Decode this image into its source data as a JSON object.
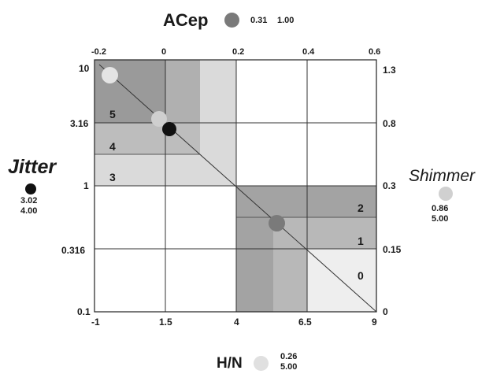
{
  "acep": {
    "label": "ACep",
    "value1": "0.31",
    "value2": "1.00",
    "dot_color": "#7a7a7a"
  },
  "jitter": {
    "label": "Jitter",
    "value1": "3.02",
    "value2": "4.00",
    "dot_color": "#111111"
  },
  "shimmer": {
    "label": "Shimmer",
    "value1": "0.86",
    "value2": "5.00",
    "dot_color": "#d0d0d0"
  },
  "hn": {
    "label": "H/N",
    "value1": "0.26",
    "value2": "5.00",
    "dot_color": "#e0e0e0"
  },
  "axes": {
    "top": [
      "-0.2",
      "0",
      "0.2",
      "0.4",
      "0.6"
    ],
    "bottom": [
      "-1",
      "1.5",
      "4",
      "6.5",
      "9"
    ],
    "left": [
      "10",
      "3.16",
      "1",
      "0.316",
      "0.1"
    ],
    "right": [
      "1.3",
      "0.8",
      "0.3",
      "0.15",
      "0"
    ]
  },
  "bands": {
    "upper": [
      "5",
      "4",
      "3"
    ],
    "lower": [
      "2",
      "1",
      "0"
    ]
  }
}
